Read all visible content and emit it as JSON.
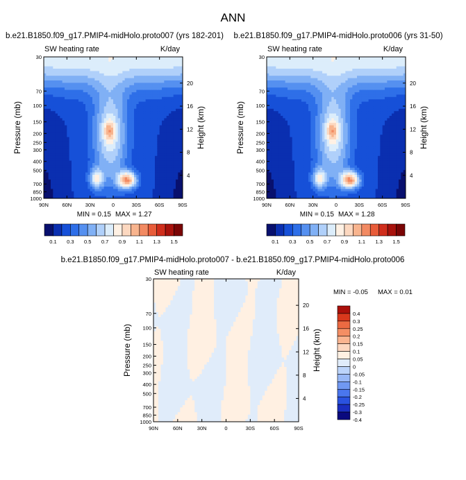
{
  "figure": {
    "title": "ANN"
  },
  "colors": {
    "abs_palette": [
      "#08106e",
      "#0a2fb0",
      "#1650d8",
      "#2e6fe8",
      "#5590f0",
      "#80b0f5",
      "#b0d0fa",
      "#dcedfb",
      "#fff1e4",
      "#fcd8c0",
      "#f8b48e",
      "#f28a62",
      "#e85c3a",
      "#d02e1c",
      "#a8120c",
      "#7a0505"
    ],
    "diff_palette": [
      "#0a0a7e",
      "#1a2ec0",
      "#2a52e0",
      "#4a76ee",
      "#7098f2",
      "#98b8f6",
      "#bcd4fa",
      "#e0ecfa",
      "#fff0e2",
      "#fdd7c0",
      "#fab490",
      "#f48e64",
      "#ec6a42",
      "#d8381c",
      "#aa100a"
    ]
  },
  "chart_data": [
    {
      "type": "heatmap",
      "title": "b.e21.B1850.f09_g17.PMIP4-midHolo.proto007 (yrs 182-201)",
      "variable": "SW heating rate",
      "units": "K/day",
      "ylabel": "Pressure (mb)",
      "y2label": "Height (km)",
      "x_ticks": [
        "90N",
        "60N",
        "30N",
        "0",
        "30S",
        "60S",
        "90S"
      ],
      "y_ticks": [
        "30",
        "70",
        "100",
        "150",
        "200",
        "250",
        "300",
        "400",
        "500",
        "700",
        "850",
        "1000"
      ],
      "y_tick_values": [
        30,
        70,
        100,
        150,
        200,
        250,
        300,
        400,
        500,
        700,
        850,
        1000
      ],
      "height_ticks": [
        "20",
        "16",
        "12",
        "8",
        "4"
      ],
      "height_tick_values": [
        20,
        16,
        12,
        8,
        4
      ],
      "ylim": [
        30,
        1000
      ],
      "min_label": "MIN = 0.15",
      "max_label": "MAX = 1.27",
      "min": 0.15,
      "max": 1.27,
      "levels": [
        0.1,
        0.2,
        0.3,
        0.4,
        0.5,
        0.6,
        0.7,
        0.8,
        0.9,
        1.0,
        1.1,
        1.2,
        1.3,
        1.4,
        1.5
      ],
      "colorbar_labels": [
        "0.1",
        "0.3",
        "0.5",
        "0.7",
        "0.9",
        "1.1",
        "1.3",
        "1.5"
      ]
    },
    {
      "type": "heatmap",
      "title": "b.e21.B1850.f09_g17.PMIP4-midHolo.proto006 (yrs 31-50)",
      "variable": "SW heating rate",
      "units": "K/day",
      "ylabel": "Pressure (mb)",
      "y2label": "Height (km)",
      "x_ticks": [
        "90N",
        "60N",
        "30N",
        "0",
        "30S",
        "60S",
        "90S"
      ],
      "y_ticks": [
        "30",
        "70",
        "100",
        "150",
        "200",
        "250",
        "300",
        "400",
        "500",
        "700",
        "850",
        "1000"
      ],
      "y_tick_values": [
        30,
        70,
        100,
        150,
        200,
        250,
        300,
        400,
        500,
        700,
        850,
        1000
      ],
      "height_ticks": [
        "20",
        "16",
        "12",
        "8",
        "4"
      ],
      "height_tick_values": [
        20,
        16,
        12,
        8,
        4
      ],
      "ylim": [
        30,
        1000
      ],
      "min_label": "MIN = 0.15",
      "max_label": "MAX = 1.28",
      "min": 0.15,
      "max": 1.28,
      "levels": [
        0.1,
        0.2,
        0.3,
        0.4,
        0.5,
        0.6,
        0.7,
        0.8,
        0.9,
        1.0,
        1.1,
        1.2,
        1.3,
        1.4,
        1.5
      ],
      "colorbar_labels": [
        "0.1",
        "0.3",
        "0.5",
        "0.7",
        "0.9",
        "1.1",
        "1.3",
        "1.5"
      ]
    },
    {
      "type": "heatmap",
      "title": "b.e21.B1850.f09_g17.PMIP4-midHolo.proto007 - b.e21.B1850.f09_g17.PMIP4-midHolo.proto006",
      "variable": "SW heating rate",
      "units": "K/day",
      "ylabel": "Pressure (mb)",
      "y2label": "Height (km)",
      "x_ticks": [
        "90N",
        "60N",
        "30N",
        "0",
        "30S",
        "60S",
        "90S"
      ],
      "y_ticks": [
        "30",
        "70",
        "100",
        "150",
        "200",
        "250",
        "300",
        "400",
        "500",
        "700",
        "850",
        "1000"
      ],
      "y_tick_values": [
        30,
        70,
        100,
        150,
        200,
        250,
        300,
        400,
        500,
        700,
        850,
        1000
      ],
      "height_ticks": [
        "20",
        "16",
        "12",
        "8",
        "4"
      ],
      "height_tick_values": [
        20,
        16,
        12,
        8,
        4
      ],
      "ylim": [
        30,
        1000
      ],
      "min_label": "MIN = -0.05",
      "max_label": "MAX = 0.01",
      "min": -0.05,
      "max": 0.01,
      "colorbar_labels": [
        "0.4",
        "0.3",
        "0.25",
        "0.2",
        "0.15",
        "0.1",
        "0.05",
        "0",
        "-0.05",
        "-0.1",
        "-0.15",
        "-0.2",
        "-0.25",
        "-0.3",
        "-0.4"
      ]
    }
  ]
}
